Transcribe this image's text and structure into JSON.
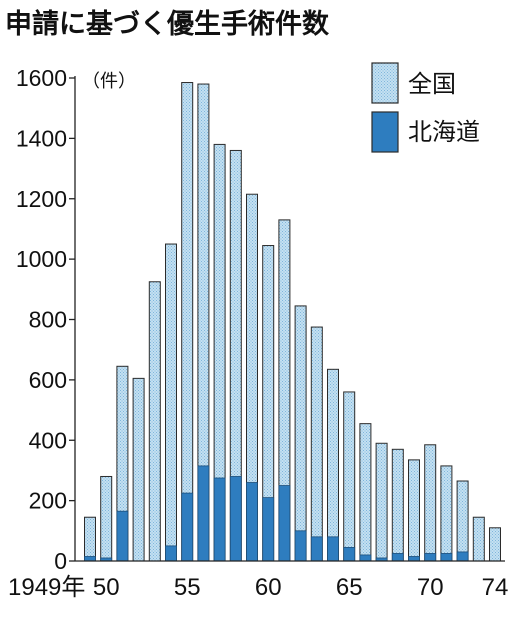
{
  "chart_data": {
    "type": "bar",
    "title": "申請に基づく優生手術件数",
    "ylabel": "（件）",
    "xlabel": "",
    "ylim": [
      0,
      1600
    ],
    "yticks": [
      0,
      200,
      400,
      600,
      800,
      1000,
      1200,
      1400,
      1600
    ],
    "x_tick_labels": [
      {
        "year": 1949,
        "label": "1949年"
      },
      {
        "year": 1950,
        "label": "50"
      },
      {
        "year": 1955,
        "label": "55"
      },
      {
        "year": 1960,
        "label": "60"
      },
      {
        "year": 1965,
        "label": "65"
      },
      {
        "year": 1970,
        "label": "70"
      },
      {
        "year": 1974,
        "label": "74"
      }
    ],
    "categories": [
      1949,
      1950,
      1951,
      1952,
      1953,
      1954,
      1955,
      1956,
      1957,
      1958,
      1959,
      1960,
      1961,
      1962,
      1963,
      1964,
      1965,
      1966,
      1967,
      1968,
      1969,
      1970,
      1971,
      1972,
      1973,
      1974
    ],
    "series": [
      {
        "name": "全国",
        "color": "#b9d8ec",
        "values": [
          145,
          280,
          645,
          605,
          925,
          1050,
          1585,
          1580,
          1380,
          1360,
          1215,
          1045,
          1130,
          845,
          775,
          635,
          560,
          455,
          390,
          370,
          335,
          385,
          315,
          265,
          145,
          110
        ]
      },
      {
        "name": "北海道",
        "color": "#2e7dbf",
        "values": [
          15,
          10,
          165,
          0,
          0,
          50,
          225,
          315,
          275,
          280,
          260,
          210,
          250,
          100,
          80,
          80,
          45,
          20,
          10,
          25,
          15,
          25,
          25,
          30,
          0,
          0
        ]
      }
    ],
    "grid": false,
    "legend_position": "top-right"
  }
}
